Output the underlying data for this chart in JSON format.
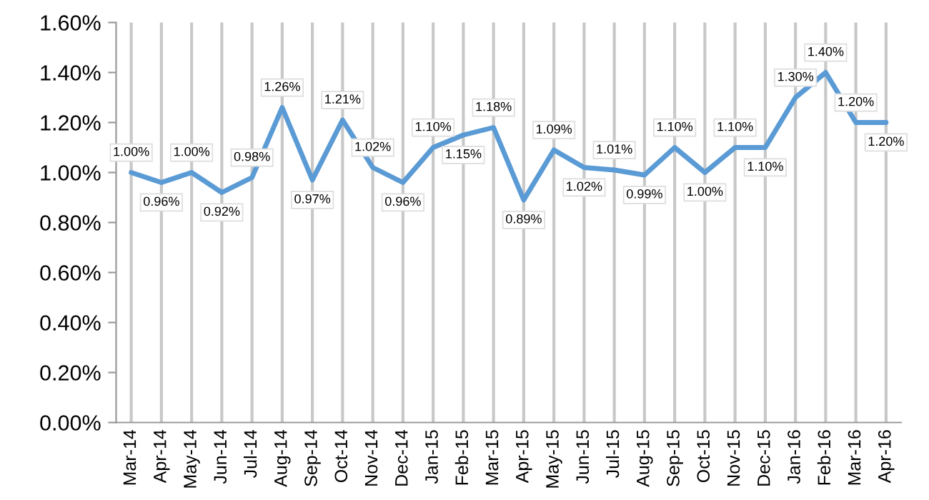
{
  "chart_data": {
    "type": "line",
    "categories": [
      "Mar-14",
      "Apr-14",
      "May-14",
      "Jun-14",
      "Jul-14",
      "Aug-14",
      "Sep-14",
      "Oct-14",
      "Nov-14",
      "Dec-14",
      "Jan-15",
      "Feb-15",
      "Mar-15",
      "Apr-15",
      "May-15",
      "Jun-15",
      "Jul-15",
      "Aug-15",
      "Sep-15",
      "Oct-15",
      "Nov-15",
      "Dec-15",
      "Jan-16",
      "Feb-16",
      "Mar-16",
      "Apr-16"
    ],
    "series": [
      {
        "color": "#5b9bd5",
        "values": [
          1.0,
          0.96,
          1.0,
          0.92,
          0.98,
          1.26,
          0.97,
          1.21,
          1.02,
          0.96,
          1.1,
          1.15,
          1.18,
          0.89,
          1.09,
          1.02,
          1.01,
          0.99,
          1.1,
          1.0,
          1.1,
          1.1,
          1.3,
          1.4,
          1.2,
          1.2
        ],
        "value_labels": [
          "1.00%",
          "0.96%",
          "1.00%",
          "0.92%",
          "0.98%",
          "1.26%",
          "0.97%",
          "1.21%",
          "1.02%",
          "0.96%",
          "1.10%",
          "1.15%",
          "1.18%",
          "0.89%",
          "1.09%",
          "1.02%",
          "1.01%",
          "0.99%",
          "1.10%",
          "1.00%",
          "1.10%",
          "1.10%",
          "1.30%",
          "1.40%",
          "1.20%",
          "1.20%"
        ]
      }
    ],
    "ylim": [
      0,
      1.6
    ],
    "yticks": [
      {
        "value": 0,
        "label": "0.00%"
      },
      {
        "value": 0.2,
        "label": "0.20%"
      },
      {
        "value": 0.4,
        "label": "0.40%"
      },
      {
        "value": 0.6,
        "label": "0.60%"
      },
      {
        "value": 0.8,
        "label": "0.80%"
      },
      {
        "value": 1.0,
        "label": "1.00%"
      },
      {
        "value": 1.2,
        "label": "1.20%"
      },
      {
        "value": 1.4,
        "label": "1.40%"
      },
      {
        "value": 1.6,
        "label": "1.60%"
      }
    ],
    "grid": "x",
    "marker": "none",
    "line_style": "solid"
  }
}
